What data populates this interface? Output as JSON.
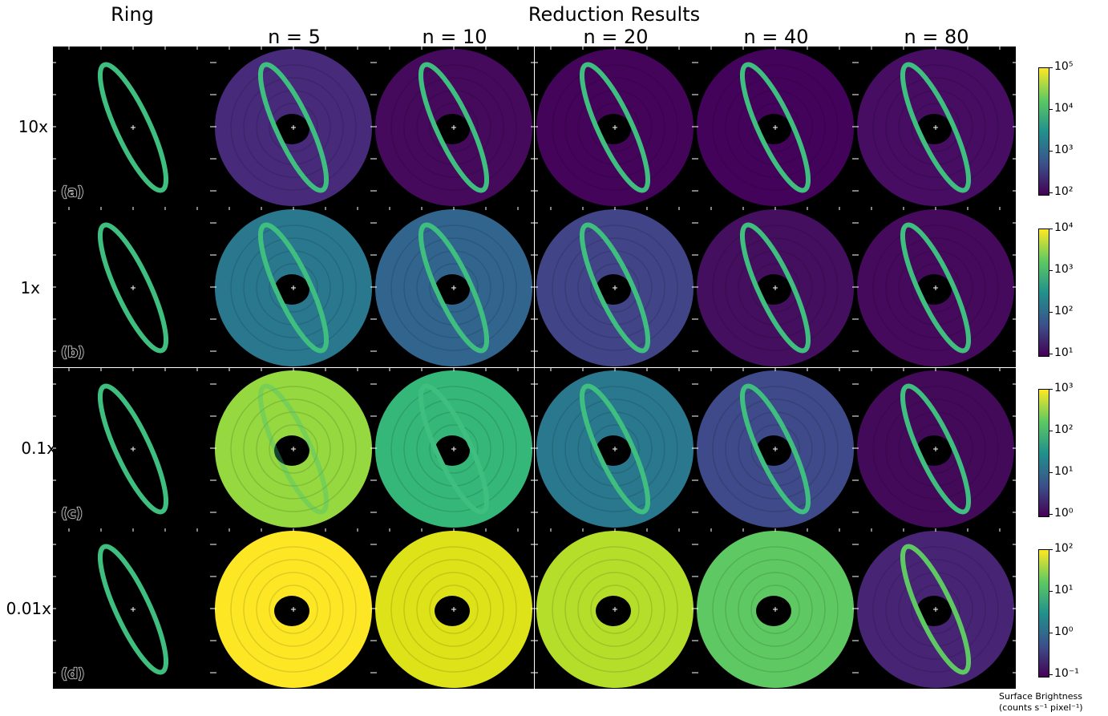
{
  "header": {
    "ring_title": "Ring",
    "results_title": "Reduction Results",
    "columns": [
      "n = 5",
      "n = 10",
      "n = 20",
      "n = 40",
      "n = 80"
    ]
  },
  "rows": [
    {
      "label": "10x",
      "letter": "(a)",
      "cbar_ticks": [
        "10⁵",
        "10⁴",
        "10³",
        "10²"
      ]
    },
    {
      "label": "1x",
      "letter": "(b)",
      "cbar_ticks": [
        "10⁴",
        "10³",
        "10²",
        "10¹"
      ]
    },
    {
      "label": "0.1x",
      "letter": "(c)",
      "cbar_ticks": [
        "10³",
        "10²",
        "10¹",
        "10⁰"
      ]
    },
    {
      "label": "0.01x",
      "letter": "(d)",
      "cbar_ticks": [
        "10²",
        "10¹",
        "10⁰",
        "10⁻¹"
      ]
    }
  ],
  "colorbar": {
    "title_line1": "Surface Brightness",
    "title_line2": "(counts s⁻¹ pixel⁻¹)"
  },
  "colors": {
    "viridis_dark": "#440154",
    "viridis_blue": "#3b528b",
    "viridis_teal": "#21918c",
    "viridis_green": "#5ec962",
    "viridis_yellow": "#fde725",
    "ring_color": "#3fbf7f"
  },
  "disk_background": [
    [
      "#472a7a",
      "#450a5c",
      "#44045a",
      "#44035a",
      "#460d62"
    ],
    [
      "#2a788e",
      "#31658e",
      "#414487",
      "#440f5e",
      "#450a5c"
    ],
    [
      "#95d840",
      "#35b779",
      "#2a788e",
      "#3e4a89",
      "#440a5a"
    ],
    [
      "#fde725",
      "#dde318",
      "#b5de2b",
      "#5ec962",
      "#482475"
    ]
  ]
}
